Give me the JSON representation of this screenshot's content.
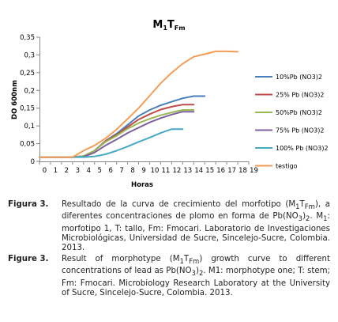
{
  "chart_data": {
    "type": "line",
    "title_main": "M",
    "title_sub1": "1",
    "title_mid": "T",
    "title_sub2": "Fm",
    "xlabel": "Horas",
    "ylabel": "DO 600nm",
    "xlim": [
      0,
      19
    ],
    "ylim": [
      0,
      0.35
    ],
    "xticks": [
      0,
      1,
      2,
      3,
      4,
      5,
      6,
      7,
      8,
      9,
      10,
      11,
      12,
      13,
      14,
      15,
      16,
      17,
      18,
      19
    ],
    "yticks": [
      0,
      0.05,
      0.1,
      0.15,
      0.2,
      0.25,
      0.3,
      0.35
    ],
    "ytick_labels": [
      "0",
      "0,05",
      "0,1",
      "0,15",
      "0,2",
      "0,25",
      "0,3",
      "0,35"
    ],
    "grid": false,
    "legend_position": "right",
    "series": [
      {
        "name": "10%Pb (NO3)2",
        "color": "#4a7ebb",
        "x": [
          0,
          1,
          2,
          3,
          4,
          5,
          6,
          7,
          8,
          9,
          10,
          11,
          12,
          13,
          14,
          15
        ],
        "y": [
          0.012,
          0.012,
          0.012,
          0.012,
          0.015,
          0.03,
          0.058,
          0.078,
          0.103,
          0.128,
          0.145,
          0.158,
          0.168,
          0.178,
          0.184,
          0.184
        ]
      },
      {
        "name": "25% Pb (NO3)2",
        "color": "#be4b48",
        "x": [
          0,
          1,
          2,
          3,
          4,
          5,
          6,
          7,
          8,
          9,
          10,
          11,
          12,
          13,
          14
        ],
        "y": [
          0.012,
          0.012,
          0.012,
          0.012,
          0.015,
          0.03,
          0.057,
          0.075,
          0.097,
          0.118,
          0.133,
          0.146,
          0.154,
          0.16,
          0.16
        ]
      },
      {
        "name": "50%Pb (NO3)2",
        "color": "#98b954",
        "x": [
          0,
          1,
          2,
          3,
          4,
          5,
          6,
          7,
          8,
          9,
          10,
          11,
          12,
          13,
          14
        ],
        "y": [
          0.012,
          0.012,
          0.012,
          0.012,
          0.015,
          0.03,
          0.055,
          0.072,
          0.092,
          0.108,
          0.12,
          0.13,
          0.138,
          0.145,
          0.145
        ]
      },
      {
        "name": "75% Pb (NO3)2",
        "color": "#7d60a0",
        "x": [
          0,
          1,
          2,
          3,
          4,
          5,
          6,
          7,
          8,
          9,
          10,
          11,
          12,
          13,
          14
        ],
        "y": [
          0.012,
          0.012,
          0.012,
          0.012,
          0.013,
          0.025,
          0.045,
          0.062,
          0.08,
          0.095,
          0.11,
          0.122,
          0.132,
          0.14,
          0.14
        ]
      },
      {
        "name": "100% Pb (NO3)2",
        "color": "#46aac5",
        "x": [
          0,
          1,
          2,
          3,
          4,
          5,
          6,
          7,
          8,
          9,
          10,
          11,
          12,
          13
        ],
        "y": [
          0.012,
          0.012,
          0.012,
          0.012,
          0.012,
          0.014,
          0.02,
          0.03,
          0.042,
          0.055,
          0.067,
          0.08,
          0.091,
          0.091
        ]
      },
      {
        "name": "testigo",
        "color": "#f59d56",
        "x": [
          0,
          1,
          2,
          3,
          4,
          5,
          6,
          7,
          8,
          9,
          10,
          11,
          12,
          13,
          14,
          15,
          16,
          17,
          18
        ],
        "y": [
          0.012,
          0.012,
          0.012,
          0.012,
          0.03,
          0.045,
          0.065,
          0.09,
          0.12,
          0.15,
          0.185,
          0.22,
          0.25,
          0.275,
          0.295,
          0.302,
          0.31,
          0.31,
          0.309
        ]
      }
    ]
  },
  "captions": {
    "fig3_es_label": "Figura 3.",
    "fig3_es_part1": "Resultado de la curva de crecimiento del morfotipo (M",
    "fig3_es_sub1": "1",
    "fig3_es_part2": "T",
    "fig3_es_sub2": "Fm",
    "fig3_es_part3": "), a diferentes concentraciones de plomo en forma de Pb(NO",
    "fig3_es_sub3": "3",
    "fig3_es_part4": ")",
    "fig3_es_sub4": "2",
    "fig3_es_part5": ". M",
    "fig3_es_sub5": "1",
    "fig3_es_part6": ": morfotipo 1, T: tallo, Fm: Fmocari. Laboratorio de Investigaciones Microbiológicas, Universidad de Sucre, Sincelejo-Sucre, Colombia. 2013.",
    "fig3_en_label": "Figure 3.",
    "fig3_en_part1": "Result of morphotype (M",
    "fig3_en_sub1": "1",
    "fig3_en_part2": "T",
    "fig3_en_sub2": "Fm",
    "fig3_en_part3": ") growth curve to different concentrations of lead as Pb(NO",
    "fig3_en_sub3": "3",
    "fig3_en_part4": ")",
    "fig3_en_sub4": "2",
    "fig3_en_part5": ". M1: morphotype one; T: stem; Fm: Fmocari. Microbiology Research Laboratory at the University of Sucre, Sincelejo-Sucre, Colombia. 2013."
  }
}
